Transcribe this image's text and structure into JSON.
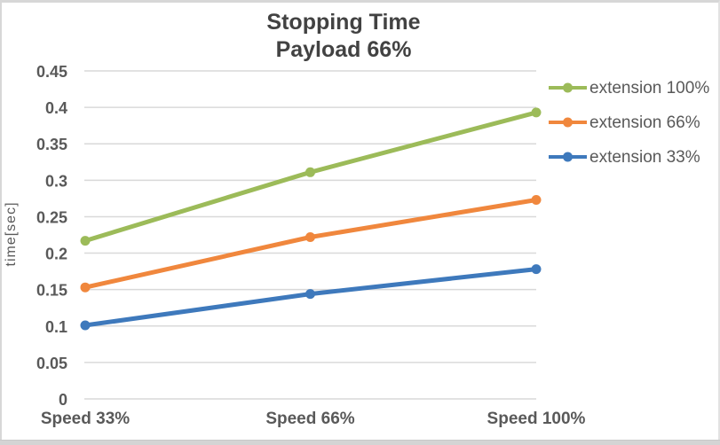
{
  "chart": {
    "title": "Stopping Time",
    "subtitle": "Payload 66%"
  },
  "chart_data": {
    "type": "line",
    "title": "Stopping Time",
    "subtitle": "Payload 66%",
    "categories": [
      "Speed 33%",
      "Speed 66%",
      "Speed 100%"
    ],
    "series": [
      {
        "name": "extension 100%",
        "color": "#9CBB59",
        "values": [
          0.217,
          0.311,
          0.393
        ]
      },
      {
        "name": "extension 66%",
        "color": "#F0873D",
        "values": [
          0.153,
          0.222,
          0.273
        ]
      },
      {
        "name": "extension 33%",
        "color": "#3E79BC",
        "values": [
          0.101,
          0.144,
          0.178
        ]
      }
    ],
    "xlabel": "",
    "ylabel": "time[sec]",
    "ylim": [
      0,
      0.45
    ],
    "ytick_step": 0.05,
    "ytick_labels": [
      "0",
      "0.05",
      "0.1",
      "0.15",
      "0.2",
      "0.25",
      "0.3",
      "0.35",
      "0.4",
      "0.45"
    ],
    "grid": true,
    "legend_position": "right",
    "colors": {
      "grid": "#D9D9D9",
      "axis_text": "#595959",
      "title_text": "#424242"
    }
  }
}
